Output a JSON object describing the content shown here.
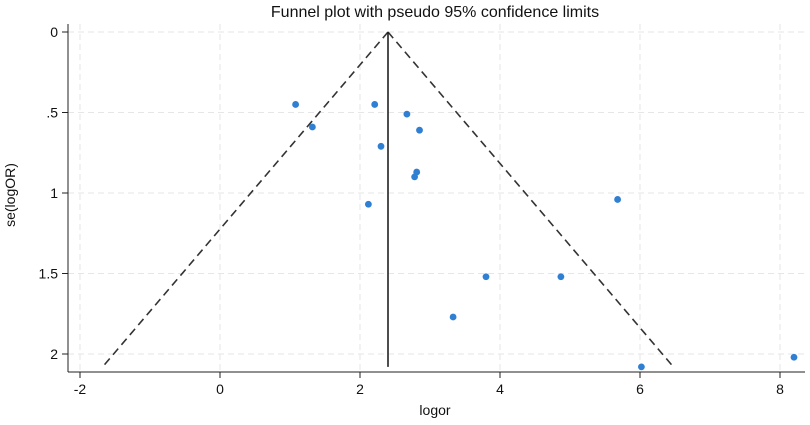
{
  "chart_data": {
    "type": "scatter",
    "title": "Funnel plot with pseudo 95% confidence limits",
    "xlabel": "logor",
    "ylabel": "se(logOR)",
    "xlim": [
      -2.1,
      8.4
    ],
    "ylim": [
      0,
      2.1
    ],
    "y_reversed": true,
    "grid": true,
    "x_ticks": [
      -2,
      0,
      2,
      4,
      6,
      8
    ],
    "x_tick_labels": [
      "-2",
      "0",
      "2",
      "4",
      "6",
      "8"
    ],
    "y_ticks": [
      0,
      0.5,
      1,
      1.5,
      2
    ],
    "y_tick_labels": [
      "0",
      ".5",
      "1",
      "1.5",
      "2"
    ],
    "pooled_estimate": 2.4,
    "ci_max_se": 2.08,
    "points": [
      {
        "x": 1.08,
        "y": 0.45
      },
      {
        "x": 1.32,
        "y": 0.59
      },
      {
        "x": 2.21,
        "y": 0.45
      },
      {
        "x": 2.67,
        "y": 0.51
      },
      {
        "x": 2.85,
        "y": 0.61
      },
      {
        "x": 2.3,
        "y": 0.71
      },
      {
        "x": 2.81,
        "y": 0.87
      },
      {
        "x": 2.78,
        "y": 0.9
      },
      {
        "x": 2.12,
        "y": 1.07
      },
      {
        "x": 5.68,
        "y": 1.04
      },
      {
        "x": 3.8,
        "y": 1.52
      },
      {
        "x": 4.87,
        "y": 1.52
      },
      {
        "x": 3.33,
        "y": 1.77
      },
      {
        "x": 6.02,
        "y": 2.08
      },
      {
        "x": 8.2,
        "y": 2.02
      }
    ]
  }
}
